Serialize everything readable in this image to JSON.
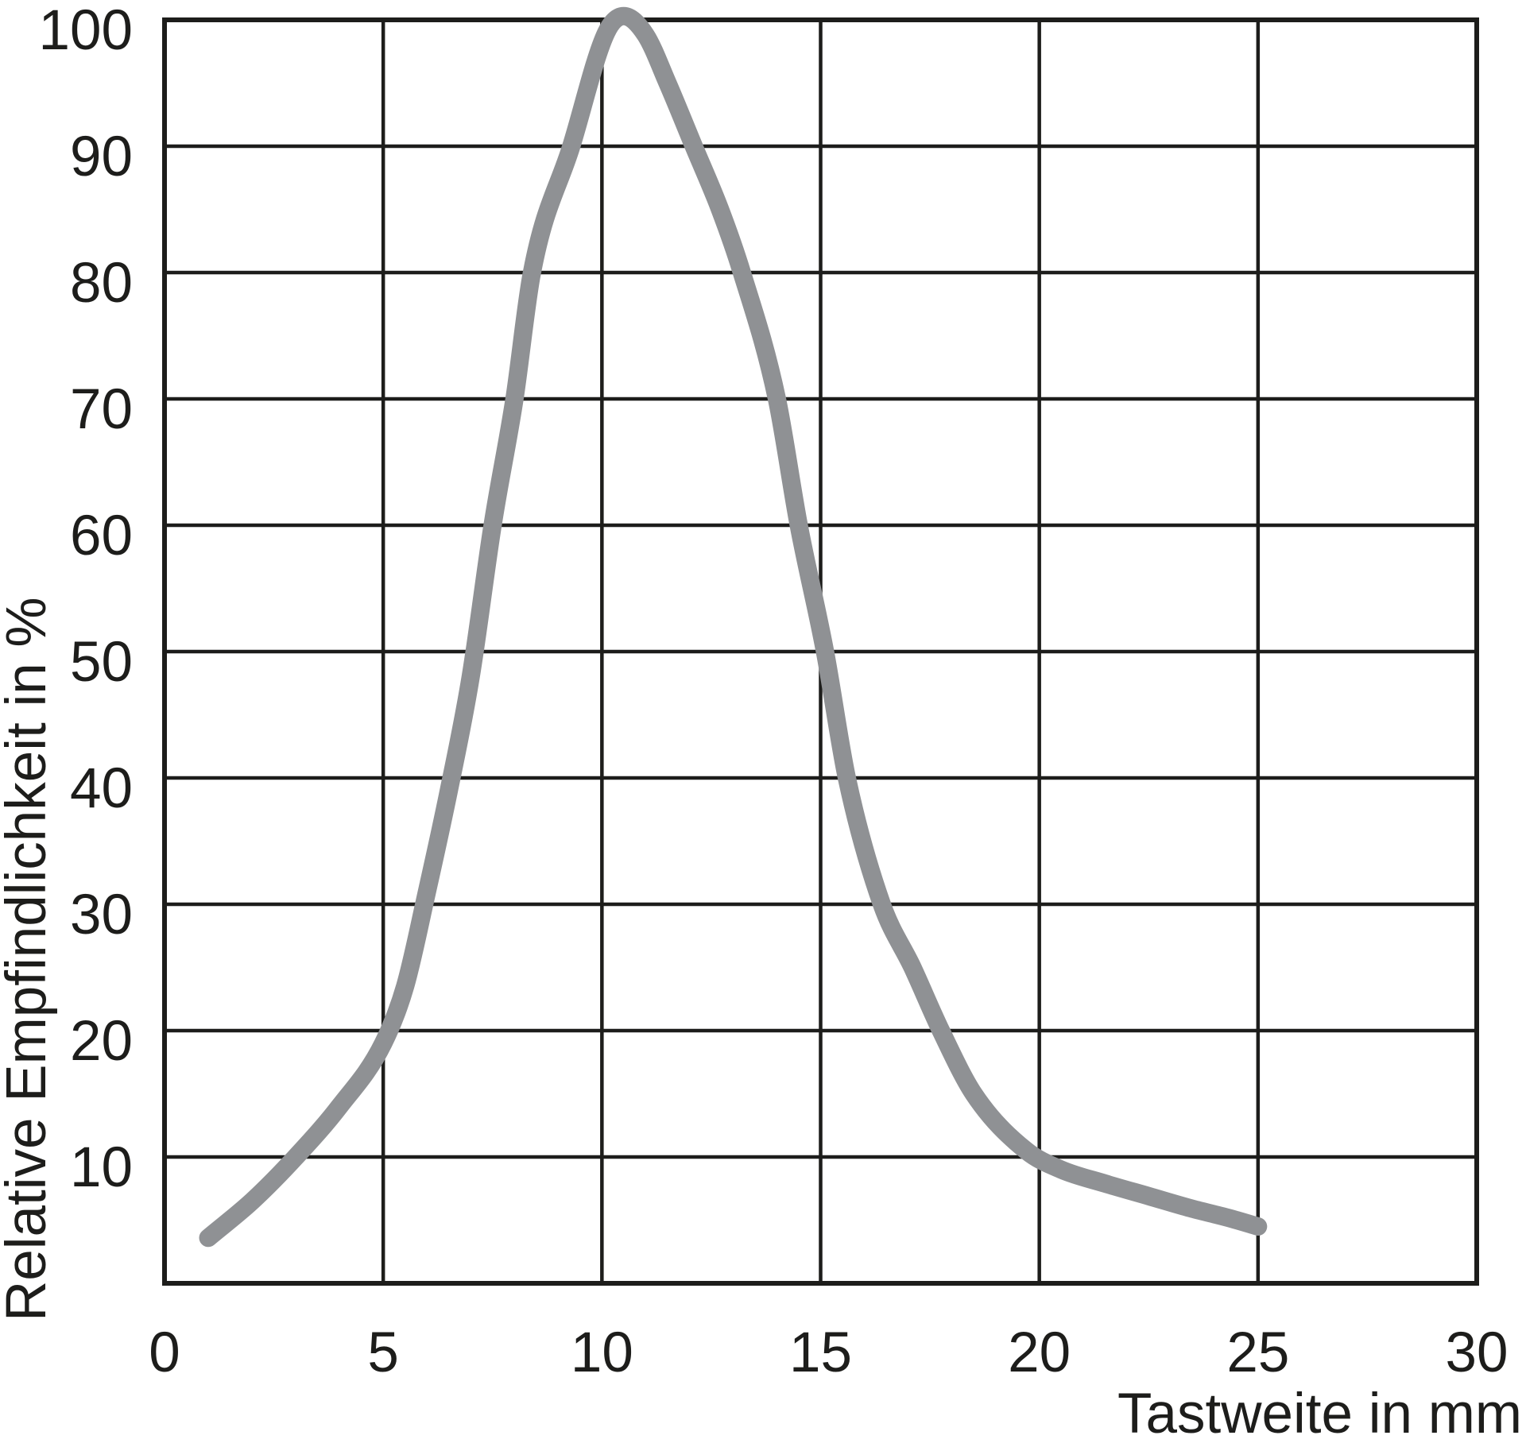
{
  "page": {
    "background": "#ffffff"
  },
  "chart_data": {
    "type": "line",
    "title": "",
    "xlabel": "Tastweite in mm",
    "ylabel": "Relative Empfindlichkeit in %",
    "xlim": [
      0,
      30
    ],
    "ylim": [
      0,
      100
    ],
    "x_ticks": [
      "0",
      "5",
      "10",
      "15",
      "20",
      "25",
      "30"
    ],
    "y_ticks": [
      "10",
      "20",
      "30",
      "40",
      "50",
      "60",
      "70",
      "80",
      "90",
      "100"
    ],
    "grid": "on",
    "legend": "none",
    "axis_color": "#1d1d1b",
    "text_color": "#1d1d1b",
    "series": [
      {
        "name": "Relative Empfindlichkeit",
        "color": "#8f9194",
        "points": [
          [
            1,
            3.6
          ],
          [
            2,
            6.5
          ],
          [
            3,
            10
          ],
          [
            4,
            14
          ],
          [
            5,
            19
          ],
          [
            5.5,
            23.5
          ],
          [
            6,
            31
          ],
          [
            6.5,
            39
          ],
          [
            7,
            48
          ],
          [
            7.5,
            60
          ],
          [
            8,
            70
          ],
          [
            8.4,
            80
          ],
          [
            9.3,
            90
          ],
          [
            10.1,
            99
          ],
          [
            10.5,
            100.3
          ],
          [
            11,
            98.8
          ],
          [
            11.5,
            95
          ],
          [
            12.1,
            90
          ],
          [
            12.7,
            85
          ],
          [
            13.2,
            80
          ],
          [
            14,
            70
          ],
          [
            14.5,
            60
          ],
          [
            15.1,
            50
          ],
          [
            15.6,
            40
          ],
          [
            16.4,
            30
          ],
          [
            17.1,
            25
          ],
          [
            17.75,
            20
          ],
          [
            18.5,
            15
          ],
          [
            19.7,
            10.5
          ],
          [
            20.5,
            9
          ],
          [
            21.5,
            7.9
          ],
          [
            22.5,
            6.9
          ],
          [
            23.5,
            5.9
          ],
          [
            24.3,
            5.2
          ],
          [
            25,
            4.5
          ]
        ]
      }
    ]
  }
}
